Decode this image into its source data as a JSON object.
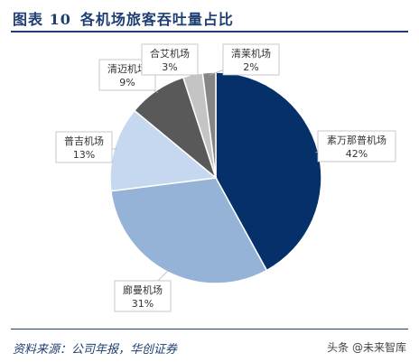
{
  "figure": {
    "label": "图表 10",
    "title": "各机场旅客吞吐量占比"
  },
  "chart_data": {
    "type": "pie",
    "labels": [
      "素万那普机场",
      "廊曼机场",
      "普吉机场",
      "清迈机场",
      "合艾机场",
      "清莱机场"
    ],
    "values": [
      42,
      31,
      13,
      9,
      3,
      2
    ],
    "value_labels": [
      "42%",
      "31%",
      "13%",
      "9%",
      "3%",
      "2%"
    ],
    "colors": [
      "#06306a",
      "#95b2d7",
      "#c6d8ef",
      "#595959",
      "#c4c4c4",
      "#858585"
    ]
  },
  "source": "资料来源：公司年报，华创证券",
  "watermark": "头条 @未来智库"
}
